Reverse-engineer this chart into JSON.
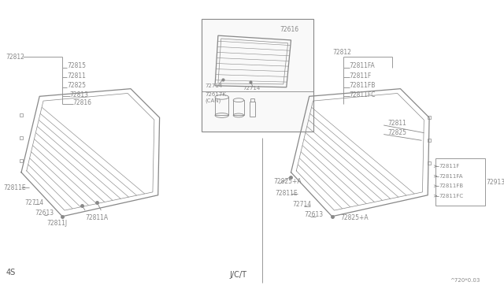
{
  "bg_color": "#ffffff",
  "lc": "#888888",
  "tc": "#888888",
  "dark_text": "#555555",
  "watermark": "^720*0.03",
  "lbl_4s": "4S",
  "lbl_jct": "J/C/T"
}
